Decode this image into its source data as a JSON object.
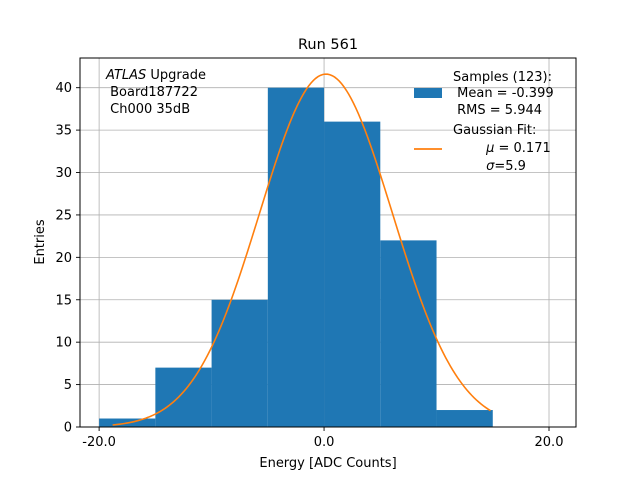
{
  "chart_data": {
    "type": "bar",
    "title": "Run 561",
    "xlabel": "Energy [ADC Counts]",
    "ylabel": "Entries",
    "xlim": [
      -21.7,
      22.4
    ],
    "ylim": [
      0,
      43.5
    ],
    "x_ticks": [
      -20.0,
      0.0,
      20.0
    ],
    "x_tick_labels": [
      "-20.0",
      "0.0",
      "20.0"
    ],
    "y_ticks": [
      0,
      5,
      10,
      15,
      20,
      25,
      30,
      35,
      40
    ],
    "y_tick_labels": [
      "0",
      "5",
      "10",
      "15",
      "20",
      "25",
      "30",
      "35",
      "40"
    ],
    "grid": true,
    "histogram": {
      "bin_edges": [
        -20,
        -15,
        -10,
        -5,
        0,
        5,
        10,
        15
      ],
      "counts": [
        1,
        7,
        15,
        40,
        36,
        22,
        2
      ],
      "color": "#1f77b4"
    },
    "fit": {
      "mu": 0.171,
      "sigma": 5.9,
      "amplitude": 41.6,
      "x_range": [
        -18.8,
        14.8
      ],
      "color": "#ff7f0e"
    },
    "annotation": {
      "italic_part": "ATLAS",
      "line1_rest": " Upgrade",
      "line2": " Board187722",
      "line3": " Ch000 35dB"
    },
    "legend": {
      "position": "top-right",
      "samples": {
        "line1": "Samples (123):",
        "line2": " Mean = -0.399",
        "line3": " RMS = 5.944"
      },
      "gaussian": {
        "line1": "Gaussian Fit:",
        "line2_symbol": "μ",
        "line2_rest": " = 0.171",
        "line3_symbol": "σ",
        "line3_rest": "=5.9"
      }
    }
  }
}
